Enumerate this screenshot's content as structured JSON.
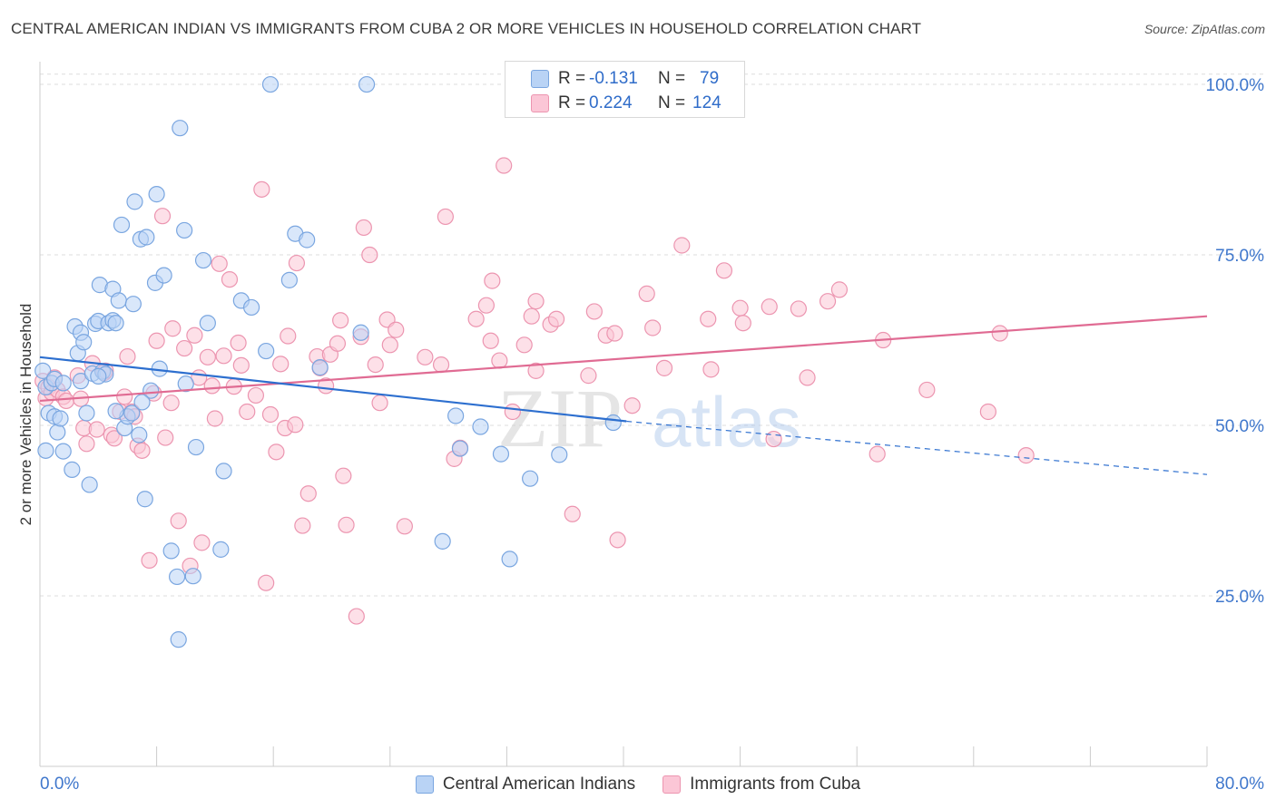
{
  "title": "CENTRAL AMERICAN INDIAN VS IMMIGRANTS FROM CUBA 2 OR MORE VEHICLES IN HOUSEHOLD CORRELATION CHART",
  "source": "Source: ZipAtlas.com",
  "watermark": {
    "zip": "ZIP",
    "atlas": "atlas"
  },
  "legend_top": {
    "rows": [
      {
        "r_label": "R =",
        "r_value": "-0.131",
        "n_label": "N =",
        "n_value": "79"
      },
      {
        "r_label": "R =",
        "r_value": "0.224",
        "n_label": "N =",
        "n_value": "124"
      }
    ]
  },
  "legend_bottom": {
    "items": [
      "Central American Indians",
      "Immigrants from Cuba"
    ]
  },
  "colors": {
    "blue_fill": "#b9d3f5",
    "blue_stroke": "#7aa6e0",
    "blue_line": "#2d6fcf",
    "pink_fill": "#fbc6d6",
    "pink_stroke": "#ec95b0",
    "pink_line": "#e06b93",
    "tick_label": "#3f77cc",
    "grid": "#dddddd"
  },
  "chart_data": {
    "type": "scatter",
    "title": "CENTRAL AMERICAN INDIAN VS IMMIGRANTS FROM CUBA 2 OR MORE VEHICLES IN HOUSEHOLD CORRELATION CHART",
    "xlabel": "",
    "ylabel": "2 or more Vehicles in Household",
    "xlim": [
      0,
      80
    ],
    "ylim": [
      0,
      102
    ],
    "x_tick_labels": [
      "0.0%",
      "80.0%"
    ],
    "y_ticks": [
      25,
      50,
      75,
      100
    ],
    "y_tick_labels": [
      "25.0%",
      "50.0%",
      "75.0%",
      "100.0%"
    ],
    "grid": "horizontal dashed",
    "legend": "top-center",
    "series": [
      {
        "name": "Central American Indians",
        "color": "blue",
        "trend": {
          "x0": 0,
          "y0": 60.0,
          "x1": 40.2,
          "y1": 50.6,
          "dashed_to_x": 80,
          "dashed_to_y": 42.8
        },
        "points": [
          [
            0.2,
            58.0
          ],
          [
            0.4,
            55.6
          ],
          [
            0.4,
            46.3
          ],
          [
            0.6,
            51.8
          ],
          [
            0.8,
            56.2
          ],
          [
            1.0,
            56.8
          ],
          [
            1.0,
            51.3
          ],
          [
            1.2,
            49.0
          ],
          [
            1.4,
            51.0
          ],
          [
            1.6,
            46.2
          ],
          [
            1.6,
            56.2
          ],
          [
            2.2,
            43.5
          ],
          [
            2.4,
            64.5
          ],
          [
            2.6,
            60.6
          ],
          [
            2.8,
            63.6
          ],
          [
            2.8,
            56.5
          ],
          [
            3.0,
            62.2
          ],
          [
            3.2,
            51.8
          ],
          [
            3.4,
            41.3
          ],
          [
            3.6,
            57.6
          ],
          [
            3.8,
            64.9
          ],
          [
            4.0,
            65.3
          ],
          [
            4.1,
            70.6
          ],
          [
            4.3,
            57.9
          ],
          [
            4.5,
            57.5
          ],
          [
            4.7,
            65.0
          ],
          [
            5.0,
            65.4
          ],
          [
            5.0,
            70.0
          ],
          [
            5.2,
            65.0
          ],
          [
            5.4,
            68.3
          ],
          [
            5.6,
            79.4
          ],
          [
            5.8,
            49.6
          ],
          [
            6.0,
            51.3
          ],
          [
            6.3,
            51.8
          ],
          [
            6.4,
            67.8
          ],
          [
            6.5,
            82.8
          ],
          [
            6.8,
            48.6
          ],
          [
            6.9,
            77.3
          ],
          [
            7.2,
            39.2
          ],
          [
            7.3,
            77.6
          ],
          [
            7.6,
            55.1
          ],
          [
            7.9,
            70.9
          ],
          [
            8.0,
            83.9
          ],
          [
            8.2,
            58.3
          ],
          [
            8.5,
            72.0
          ],
          [
            9.0,
            31.6
          ],
          [
            9.4,
            27.8
          ],
          [
            9.5,
            18.6
          ],
          [
            9.6,
            93.6
          ],
          [
            9.9,
            78.6
          ],
          [
            10.0,
            56.1
          ],
          [
            10.5,
            27.9
          ],
          [
            10.7,
            46.8
          ],
          [
            11.2,
            74.2
          ],
          [
            11.5,
            65.0
          ],
          [
            12.4,
            31.8
          ],
          [
            12.6,
            43.3
          ],
          [
            13.8,
            68.3
          ],
          [
            14.5,
            67.3
          ],
          [
            15.5,
            60.9
          ],
          [
            15.8,
            100.0
          ],
          [
            17.1,
            71.3
          ],
          [
            17.5,
            78.1
          ],
          [
            18.3,
            77.2
          ],
          [
            19.2,
            58.5
          ],
          [
            22.0,
            63.6
          ],
          [
            22.4,
            100.0
          ],
          [
            27.6,
            33.0
          ],
          [
            28.5,
            51.4
          ],
          [
            28.8,
            46.6
          ],
          [
            30.2,
            49.8
          ],
          [
            31.6,
            45.8
          ],
          [
            32.2,
            30.4
          ],
          [
            33.6,
            42.2
          ],
          [
            35.6,
            45.7
          ],
          [
            39.3,
            50.4
          ],
          [
            7.0,
            53.4
          ],
          [
            5.2,
            52.1
          ],
          [
            4.0,
            57.2
          ]
        ]
      },
      {
        "name": "Immigrants from Cuba",
        "color": "pink",
        "trend": {
          "x0": 0,
          "y0": 53.6,
          "x1": 80,
          "y1": 66.0
        },
        "points": [
          [
            0.2,
            56.5
          ],
          [
            0.4,
            54.0
          ],
          [
            0.6,
            55.6
          ],
          [
            0.8,
            54.8
          ],
          [
            1.0,
            57.0
          ],
          [
            1.2,
            55.2
          ],
          [
            1.6,
            54.2
          ],
          [
            1.8,
            53.6
          ],
          [
            2.6,
            57.3
          ],
          [
            2.8,
            53.9
          ],
          [
            3.0,
            49.6
          ],
          [
            3.2,
            47.3
          ],
          [
            3.6,
            59.1
          ],
          [
            3.9,
            49.4
          ],
          [
            4.4,
            57.7
          ],
          [
            4.5,
            58.0
          ],
          [
            4.9,
            48.6
          ],
          [
            5.1,
            48.1
          ],
          [
            5.5,
            52.0
          ],
          [
            5.8,
            54.2
          ],
          [
            6.0,
            60.1
          ],
          [
            6.3,
            52.0
          ],
          [
            6.5,
            51.3
          ],
          [
            6.7,
            47.0
          ],
          [
            7.0,
            46.3
          ],
          [
            7.5,
            30.2
          ],
          [
            7.8,
            54.7
          ],
          [
            8.0,
            62.4
          ],
          [
            8.4,
            80.7
          ],
          [
            8.6,
            48.2
          ],
          [
            9.0,
            53.3
          ],
          [
            9.1,
            64.2
          ],
          [
            9.5,
            36.0
          ],
          [
            9.9,
            61.3
          ],
          [
            10.3,
            29.4
          ],
          [
            10.6,
            63.2
          ],
          [
            10.9,
            57.0
          ],
          [
            11.1,
            32.8
          ],
          [
            11.5,
            60.0
          ],
          [
            11.8,
            55.8
          ],
          [
            12.0,
            51.0
          ],
          [
            12.3,
            73.7
          ],
          [
            12.6,
            60.2
          ],
          [
            13.0,
            71.4
          ],
          [
            13.3,
            55.7
          ],
          [
            13.6,
            62.1
          ],
          [
            13.8,
            58.8
          ],
          [
            14.2,
            52.0
          ],
          [
            14.8,
            54.4
          ],
          [
            15.2,
            84.6
          ],
          [
            15.5,
            26.9
          ],
          [
            15.8,
            51.6
          ],
          [
            16.2,
            46.1
          ],
          [
            16.5,
            59.0
          ],
          [
            16.8,
            49.6
          ],
          [
            17.0,
            63.1
          ],
          [
            17.5,
            50.1
          ],
          [
            17.6,
            73.8
          ],
          [
            18.0,
            35.3
          ],
          [
            18.4,
            40.0
          ],
          [
            19.0,
            60.1
          ],
          [
            19.2,
            58.4
          ],
          [
            19.6,
            55.8
          ],
          [
            19.9,
            60.4
          ],
          [
            20.4,
            62.0
          ],
          [
            20.6,
            65.4
          ],
          [
            20.8,
            42.6
          ],
          [
            21.0,
            35.4
          ],
          [
            21.7,
            22.0
          ],
          [
            22.0,
            63.0
          ],
          [
            22.2,
            79.0
          ],
          [
            22.6,
            75.0
          ],
          [
            23.0,
            58.9
          ],
          [
            23.3,
            53.3
          ],
          [
            23.8,
            65.5
          ],
          [
            24.0,
            61.8
          ],
          [
            24.4,
            64.0
          ],
          [
            25.0,
            35.2
          ],
          [
            26.4,
            60.0
          ],
          [
            27.5,
            58.9
          ],
          [
            27.8,
            80.6
          ],
          [
            28.4,
            45.1
          ],
          [
            28.8,
            46.7
          ],
          [
            29.9,
            65.6
          ],
          [
            30.6,
            67.6
          ],
          [
            30.9,
            62.4
          ],
          [
            31.0,
            71.2
          ],
          [
            31.5,
            59.5
          ],
          [
            31.8,
            88.1
          ],
          [
            32.4,
            52.0
          ],
          [
            33.2,
            61.8
          ],
          [
            33.7,
            66.0
          ],
          [
            34.0,
            58.0
          ],
          [
            34.0,
            68.2
          ],
          [
            35.0,
            64.8
          ],
          [
            35.4,
            65.6
          ],
          [
            36.5,
            37.0
          ],
          [
            37.6,
            57.3
          ],
          [
            38.0,
            66.7
          ],
          [
            38.8,
            63.2
          ],
          [
            39.4,
            63.5
          ],
          [
            39.6,
            33.2
          ],
          [
            40.6,
            52.9
          ],
          [
            41.6,
            69.3
          ],
          [
            42.0,
            64.3
          ],
          [
            42.8,
            58.4
          ],
          [
            44.0,
            76.4
          ],
          [
            45.8,
            65.6
          ],
          [
            46.0,
            58.2
          ],
          [
            46.9,
            72.7
          ],
          [
            48.0,
            67.2
          ],
          [
            48.2,
            65.0
          ],
          [
            50.0,
            67.4
          ],
          [
            50.3,
            48.0
          ],
          [
            52.0,
            67.1
          ],
          [
            52.6,
            57.0
          ],
          [
            54.0,
            68.2
          ],
          [
            54.8,
            69.9
          ],
          [
            57.4,
            45.8
          ],
          [
            57.8,
            62.5
          ],
          [
            60.8,
            55.2
          ],
          [
            65.0,
            52.0
          ],
          [
            65.8,
            63.5
          ],
          [
            67.6,
            45.6
          ]
        ]
      }
    ]
  }
}
